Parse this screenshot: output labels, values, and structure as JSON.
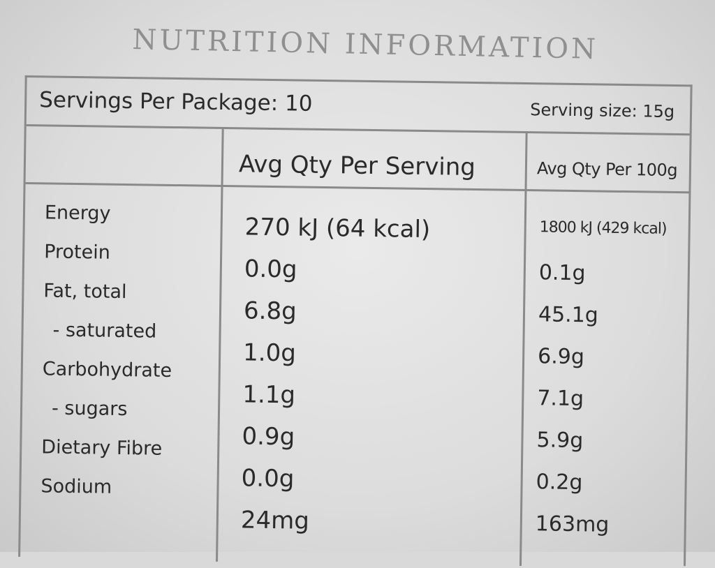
{
  "title": "NUTRITION INFORMATION",
  "servings_per_package": "Servings Per Package: 10",
  "serving_size": "Serving size: 15g",
  "columns": {
    "per_serving": "Avg Qty Per Serving",
    "per_100g": "Avg Qty Per 100g"
  },
  "rows": [
    {
      "nutrient": "Energy",
      "per_serving": "270 kJ (64 kcal)",
      "per_100g": "1800 kJ (429 kcal)"
    },
    {
      "nutrient": "Protein",
      "per_serving": "0.0g",
      "per_100g": "0.1g"
    },
    {
      "nutrient": "Fat, total",
      "per_serving": "6.8g",
      "per_100g": "45.1g"
    },
    {
      "nutrient": "- saturated",
      "per_serving": "1.0g",
      "per_100g": "6.9g"
    },
    {
      "nutrient": "Carbohydrate",
      "per_serving": "1.1g",
      "per_100g": "7.1g"
    },
    {
      "nutrient": "- sugars",
      "per_serving": "0.9g",
      "per_100g": "5.9g"
    },
    {
      "nutrient": "Dietary Fibre",
      "per_serving": "0.0g",
      "per_100g": "0.2g"
    },
    {
      "nutrient": "Sodium",
      "per_serving": "24mg",
      "per_100g": "163mg"
    }
  ]
}
